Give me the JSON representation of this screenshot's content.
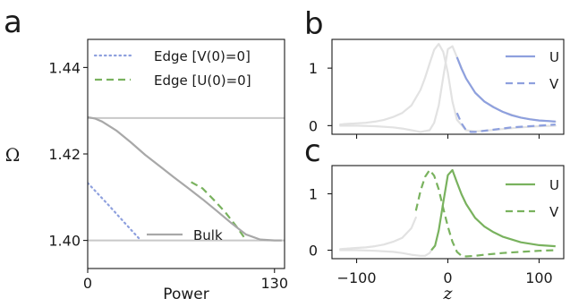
{
  "chart_data": [
    {
      "panel_letter": "a",
      "type": "line",
      "xlabel": "Power",
      "ylabel": "Ω",
      "xlim": [
        0,
        137
      ],
      "ylim": [
        1.3935,
        1.4465
      ],
      "x_ticks": [
        {
          "value": 0,
          "label": "0"
        },
        {
          "value": 130,
          "label": "130"
        }
      ],
      "y_ticks": [
        {
          "value": 1.4,
          "label": "1.40"
        },
        {
          "value": 1.42,
          "label": "1.42"
        },
        {
          "value": 1.44,
          "label": "1.44"
        }
      ],
      "hlines": [
        1.4283,
        1.4
      ],
      "hline_color": "#c8c8c8",
      "series": [
        {
          "name": "Edge [V(0)=0]",
          "style": "dotted",
          "color": "#8ea0de",
          "x": [
            0,
            15,
            30,
            37
          ],
          "y": [
            1.4133,
            1.408,
            1.4025,
            1.4
          ]
        },
        {
          "name": "Edge [U(0)=0]",
          "style": "dashed",
          "color": "#79b25e",
          "x": [
            72,
            80,
            88,
            96,
            104,
            110
          ],
          "y": [
            1.4135,
            1.412,
            1.4093,
            1.4064,
            1.403,
            1.4002
          ]
        },
        {
          "name": "Bulk",
          "style": "solid",
          "color": "#a8a8a8",
          "x": [
            0,
            5,
            10,
            20,
            30,
            40,
            50,
            60,
            70,
            80,
            90,
            100,
            110,
            120,
            130,
            135
          ],
          "y": [
            1.4285,
            1.4282,
            1.4275,
            1.4254,
            1.4227,
            1.4198,
            1.4172,
            1.4146,
            1.4121,
            1.4095,
            1.4068,
            1.404,
            1.4014,
            1.4002,
            1.4,
            1.4
          ]
        }
      ],
      "legend_top": [
        "Edge [V(0)=0]",
        "Edge [U(0)=0]"
      ],
      "legend_bottom": [
        "Bulk"
      ]
    },
    {
      "panel_letter": "b",
      "type": "line",
      "xlabel": "",
      "ylabel": "",
      "xlim": [
        -127,
        127
      ],
      "ylim": [
        -0.15,
        1.5
      ],
      "x_ticks": [
        {
          "value": -100,
          "label": ""
        },
        {
          "value": 0,
          "label": ""
        },
        {
          "value": 100,
          "label": ""
        }
      ],
      "y_ticks": [
        {
          "value": 0,
          "label": "0"
        },
        {
          "value": 1,
          "label": "1"
        }
      ],
      "background_color": "#e2e2e2",
      "series": [
        {
          "name": "U",
          "style": "solid",
          "color": "#8ea0de",
          "x": [
            10,
            15,
            20,
            30,
            40,
            50,
            60,
            70,
            80,
            90,
            100,
            110,
            118
          ],
          "y": [
            1.19,
            0.99,
            0.82,
            0.57,
            0.42,
            0.32,
            0.24,
            0.18,
            0.14,
            0.11,
            0.09,
            0.08,
            0.07
          ]
        },
        {
          "name": "V",
          "style": "dashed",
          "color": "#8ea0de",
          "x": [
            10,
            15,
            20,
            25,
            30,
            40,
            50,
            60,
            70,
            80,
            90,
            100,
            110,
            118
          ],
          "y": [
            0.22,
            0.04,
            -0.08,
            -0.11,
            -0.11,
            -0.09,
            -0.07,
            -0.05,
            -0.03,
            -0.02,
            -0.01,
            0.0,
            0.01,
            0.02
          ]
        }
      ],
      "background_curves": [
        {
          "x": [
            -118,
            -110,
            -100,
            -90,
            -80,
            -70,
            -60,
            -50,
            -40,
            -30,
            -25,
            -20,
            -15,
            -10,
            -5,
            0,
            5,
            10,
            20,
            30,
            40,
            60,
            80,
            100,
            118
          ],
          "y": [
            0.02,
            0.03,
            0.04,
            0.05,
            0.07,
            0.1,
            0.15,
            0.22,
            0.35,
            0.62,
            0.83,
            1.08,
            1.32,
            1.42,
            1.28,
            0.92,
            0.42,
            0.1,
            -0.08,
            -0.1,
            -0.09,
            -0.06,
            -0.03,
            -0.01,
            0.0
          ]
        },
        {
          "x": [
            -118,
            -100,
            -80,
            -60,
            -50,
            -40,
            -30,
            -20,
            -15,
            -10,
            -5,
            0,
            5,
            10,
            20,
            30,
            40,
            60,
            80,
            100,
            118
          ],
          "y": [
            0.0,
            0.0,
            -0.01,
            -0.03,
            -0.05,
            -0.08,
            -0.11,
            -0.08,
            0.05,
            0.35,
            0.85,
            1.33,
            1.38,
            1.19,
            0.82,
            0.57,
            0.42,
            0.24,
            0.14,
            0.09,
            0.07
          ]
        }
      ]
    },
    {
      "panel_letter": "c",
      "type": "line",
      "xlabel": "z",
      "ylabel": "",
      "xlim": [
        -127,
        127
      ],
      "ylim": [
        -0.15,
        1.5
      ],
      "x_ticks": [
        {
          "value": -100,
          "label": "−100"
        },
        {
          "value": 0,
          "label": "0"
        },
        {
          "value": 100,
          "label": "100"
        }
      ],
      "y_ticks": [
        {
          "value": 0,
          "label": "0"
        },
        {
          "value": 1,
          "label": "1"
        }
      ],
      "background_color": "#e2e2e2",
      "series": [
        {
          "name": "U",
          "style": "solid",
          "color": "#79b25e",
          "x": [
            -18,
            -14,
            -10,
            -5,
            0,
            5,
            10,
            15,
            20,
            30,
            40,
            50,
            60,
            80,
            100,
            118
          ],
          "y": [
            0.0,
            0.08,
            0.35,
            0.85,
            1.33,
            1.42,
            1.2,
            0.99,
            0.82,
            0.57,
            0.42,
            0.32,
            0.24,
            0.14,
            0.09,
            0.07
          ]
        },
        {
          "name": "V",
          "style": "dashed",
          "color": "#79b25e",
          "x": [
            -35,
            -30,
            -25,
            -20,
            -15,
            -10,
            -5,
            0,
            5,
            10,
            15,
            20,
            30,
            40,
            60,
            80,
            100,
            118
          ],
          "y": [
            0.7,
            1.05,
            1.3,
            1.42,
            1.32,
            1.08,
            0.74,
            0.42,
            0.15,
            -0.03,
            -0.1,
            -0.11,
            -0.1,
            -0.08,
            -0.05,
            -0.03,
            -0.01,
            0.0
          ]
        }
      ],
      "background_curves": [
        {
          "x": [
            -118,
            -110,
            -100,
            -90,
            -80,
            -70,
            -60,
            -50,
            -40,
            -35
          ],
          "y": [
            0.02,
            0.03,
            0.04,
            0.05,
            0.07,
            0.1,
            0.15,
            0.22,
            0.39,
            0.58
          ]
        },
        {
          "x": [
            -118,
            -100,
            -80,
            -60,
            -50,
            -40,
            -30,
            -25,
            -20,
            -18
          ],
          "y": [
            0.0,
            0.0,
            -0.01,
            -0.03,
            -0.05,
            -0.08,
            -0.1,
            -0.1,
            -0.05,
            0.0
          ]
        }
      ]
    }
  ]
}
